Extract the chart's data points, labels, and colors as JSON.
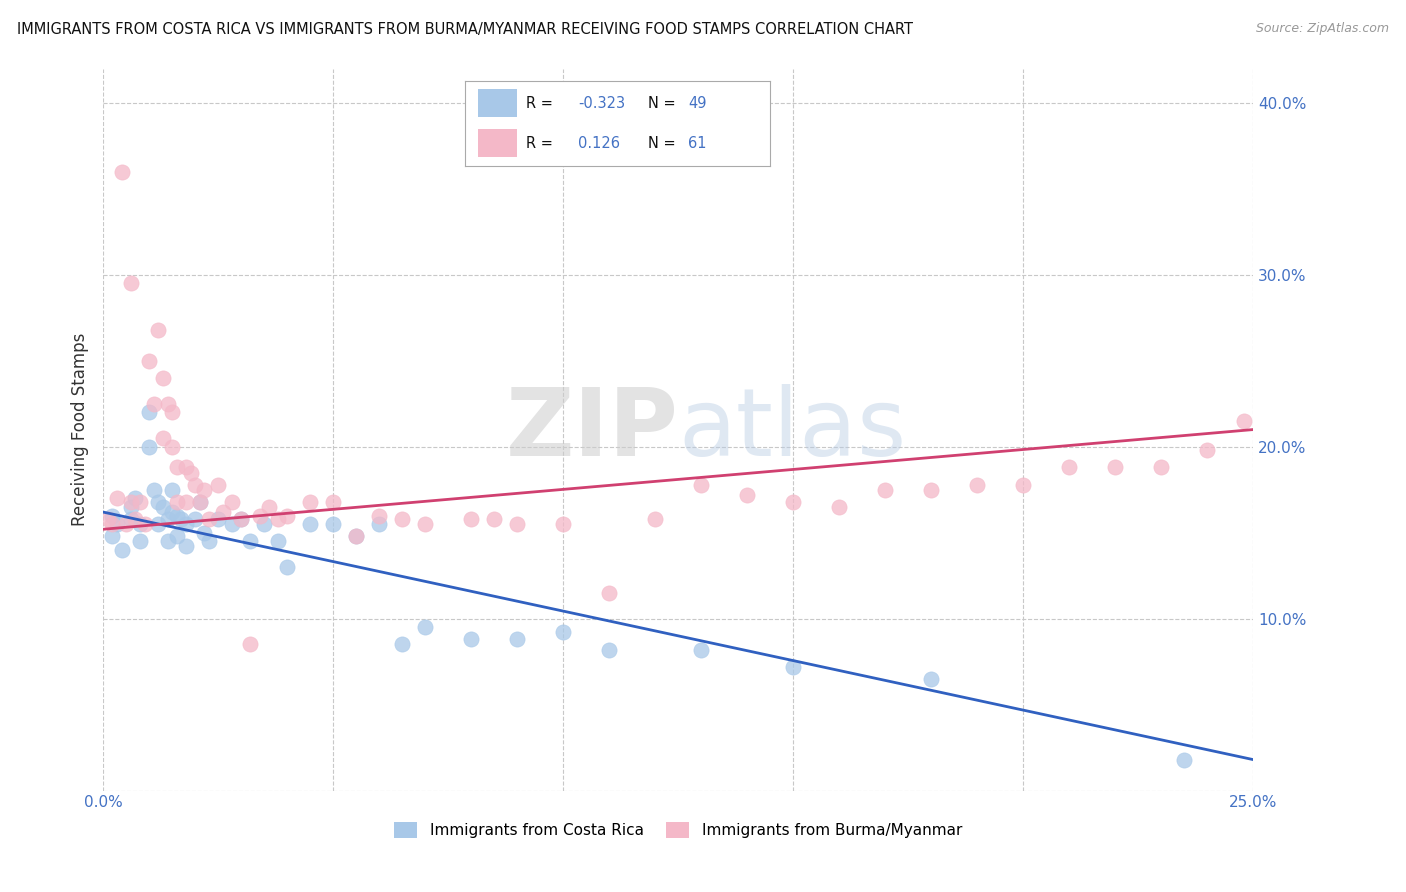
{
  "title": "IMMIGRANTS FROM COSTA RICA VS IMMIGRANTS FROM BURMA/MYANMAR RECEIVING FOOD STAMPS CORRELATION CHART",
  "source": "Source: ZipAtlas.com",
  "ylabel": "Receiving Food Stamps",
  "xlim": [
    0.0,
    0.25
  ],
  "ylim": [
    0.0,
    0.42
  ],
  "x_ticks": [
    0.0,
    0.05,
    0.1,
    0.15,
    0.2,
    0.25
  ],
  "y_ticks": [
    0.0,
    0.1,
    0.2,
    0.3,
    0.4
  ],
  "legend_labels": [
    "Immigrants from Costa Rica",
    "Immigrants from Burma/Myanmar"
  ],
  "blue_R": "-0.323",
  "blue_N": "49",
  "pink_R": "0.126",
  "pink_N": "61",
  "blue_color": "#a8c8e8",
  "pink_color": "#f4b8c8",
  "blue_line_color": "#3060c0",
  "pink_line_color": "#d04070",
  "watermark_color": "#d8d8d8",
  "background_color": "#ffffff",
  "grid_color": "#c8c8c8",
  "blue_scatter_x": [
    0.002,
    0.002,
    0.003,
    0.004,
    0.006,
    0.006,
    0.007,
    0.008,
    0.008,
    0.01,
    0.01,
    0.011,
    0.012,
    0.012,
    0.013,
    0.014,
    0.014,
    0.015,
    0.015,
    0.016,
    0.016,
    0.017,
    0.018,
    0.018,
    0.02,
    0.021,
    0.022,
    0.023,
    0.025,
    0.028,
    0.03,
    0.032,
    0.035,
    0.038,
    0.04,
    0.045,
    0.05,
    0.055,
    0.06,
    0.065,
    0.07,
    0.08,
    0.09,
    0.1,
    0.11,
    0.13,
    0.15,
    0.18,
    0.235
  ],
  "blue_scatter_y": [
    0.16,
    0.148,
    0.155,
    0.14,
    0.165,
    0.158,
    0.17,
    0.155,
    0.145,
    0.22,
    0.2,
    0.175,
    0.168,
    0.155,
    0.165,
    0.158,
    0.145,
    0.175,
    0.162,
    0.16,
    0.148,
    0.158,
    0.155,
    0.142,
    0.158,
    0.168,
    0.15,
    0.145,
    0.158,
    0.155,
    0.158,
    0.145,
    0.155,
    0.145,
    0.13,
    0.155,
    0.155,
    0.148,
    0.155,
    0.085,
    0.095,
    0.088,
    0.088,
    0.092,
    0.082,
    0.082,
    0.072,
    0.065,
    0.018
  ],
  "pink_scatter_x": [
    0.001,
    0.002,
    0.003,
    0.004,
    0.005,
    0.006,
    0.006,
    0.007,
    0.008,
    0.009,
    0.01,
    0.011,
    0.012,
    0.013,
    0.013,
    0.014,
    0.015,
    0.015,
    0.016,
    0.016,
    0.018,
    0.018,
    0.019,
    0.02,
    0.021,
    0.022,
    0.023,
    0.025,
    0.026,
    0.028,
    0.03,
    0.032,
    0.034,
    0.036,
    0.038,
    0.04,
    0.045,
    0.05,
    0.055,
    0.06,
    0.065,
    0.07,
    0.08,
    0.085,
    0.09,
    0.1,
    0.11,
    0.12,
    0.13,
    0.14,
    0.15,
    0.16,
    0.17,
    0.18,
    0.19,
    0.2,
    0.21,
    0.22,
    0.23,
    0.24,
    0.248
  ],
  "pink_scatter_y": [
    0.158,
    0.155,
    0.17,
    0.36,
    0.155,
    0.168,
    0.295,
    0.158,
    0.168,
    0.155,
    0.25,
    0.225,
    0.268,
    0.24,
    0.205,
    0.225,
    0.22,
    0.2,
    0.188,
    0.168,
    0.188,
    0.168,
    0.185,
    0.178,
    0.168,
    0.175,
    0.158,
    0.178,
    0.162,
    0.168,
    0.158,
    0.085,
    0.16,
    0.165,
    0.158,
    0.16,
    0.168,
    0.168,
    0.148,
    0.16,
    0.158,
    0.155,
    0.158,
    0.158,
    0.155,
    0.155,
    0.115,
    0.158,
    0.178,
    0.172,
    0.168,
    0.165,
    0.175,
    0.175,
    0.178,
    0.178,
    0.188,
    0.188,
    0.188,
    0.198,
    0.215
  ]
}
